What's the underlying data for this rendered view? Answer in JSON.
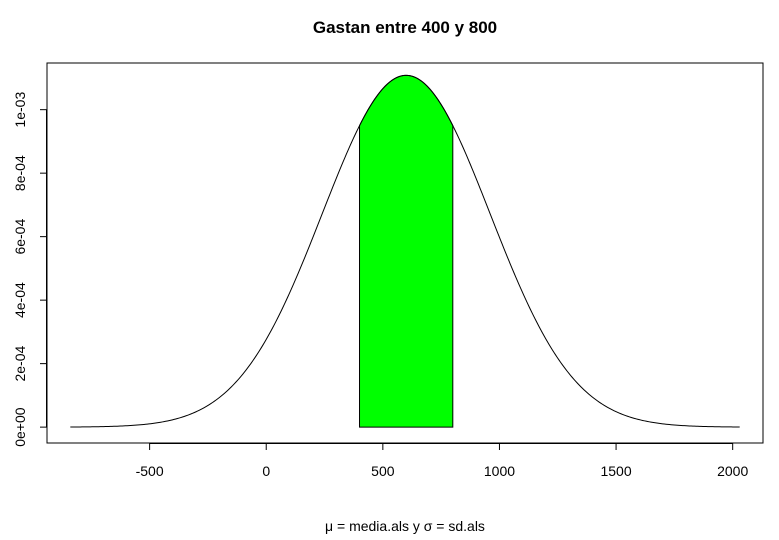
{
  "chart_data": {
    "type": "area",
    "title": "Gastan entre 400 y 800",
    "xlabel": "μ = media.als y σ = sd.als",
    "ylabel": "",
    "curve": {
      "mean": 600,
      "sd": 360,
      "x_range": [
        -840,
        2030
      ]
    },
    "shaded_region": {
      "from": 400,
      "to": 800,
      "fill": "#00ff00"
    },
    "xlim": [
      -940,
      2130
    ],
    "ylim": [
      -5e-05,
      0.001147
    ],
    "x_ticks": [
      {
        "value": -500,
        "label": "-500"
      },
      {
        "value": 0,
        "label": "0"
      },
      {
        "value": 500,
        "label": "500"
      },
      {
        "value": 1000,
        "label": "1000"
      },
      {
        "value": 1500,
        "label": "1500"
      },
      {
        "value": 2000,
        "label": "2000"
      }
    ],
    "y_ticks": [
      {
        "value": 0,
        "label": "0e+00"
      },
      {
        "value": 0.0002,
        "label": "2e-04"
      },
      {
        "value": 0.0004,
        "label": "4e-04"
      },
      {
        "value": 0.0006,
        "label": "6e-04"
      },
      {
        "value": 0.0008,
        "label": "8e-04"
      },
      {
        "value": 0.001,
        "label": "1e-03"
      }
    ],
    "line_color": "#000000"
  }
}
